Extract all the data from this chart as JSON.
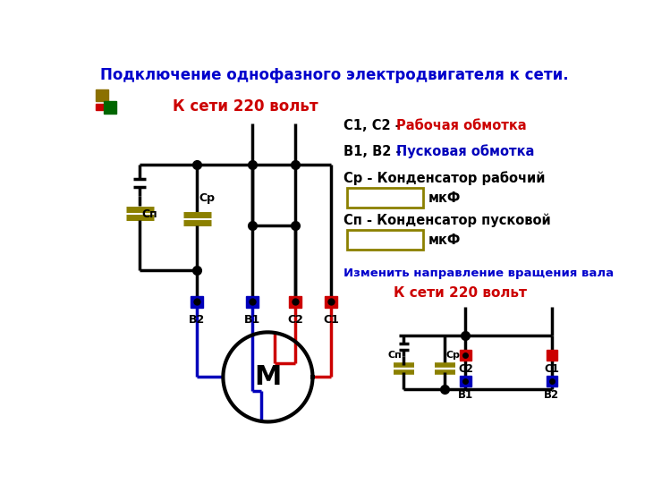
{
  "title": "Подключение однофазного электродвигателя к сети.",
  "title_color": "#0000cc",
  "title_fontsize": 12,
  "bg_color": "#ffffff",
  "text_k_seti_1": "К сети 220 вольт",
  "text_k_seti_1_color": "#cc0000",
  "text_k_seti_1_fontsize": 12,
  "legend_fontsize": 10.5,
  "mkf_text": "мкФ",
  "cap_box_color": "#8B8000",
  "text_izmenit": "Изменить направление вращения вала",
  "text_izmenit_color": "#0000cc",
  "text_izmenit_fontsize": 9.5,
  "text_k_seti_2": "К сети 220 вольт",
  "text_k_seti_2_color": "#cc0000",
  "text_k_seti_2_fontsize": 11,
  "black": "#000000",
  "blue": "#0000bb",
  "red": "#cc0000",
  "gold": "#8B8000"
}
